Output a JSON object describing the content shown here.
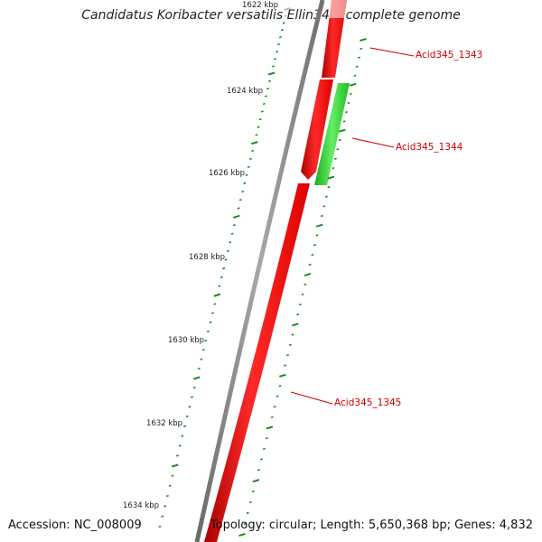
{
  "title": "Candidatus Koribacter versatilis Ellin345, complete genome",
  "accession": "Accession: NC_008009",
  "summary": "Topology: circular; Length: 5,650,368 bp; Genes: 4,832",
  "colors": {
    "backbone": "#808080",
    "forward_gene": "#ff0000",
    "reverse_gene": "#33cc33",
    "ticks": "#1f8a1f",
    "gene_label": "#cc0000"
  },
  "ticks": [
    {
      "label": "1622 kbp"
    },
    {
      "label": "1624 kbp"
    },
    {
      "label": "1626 kbp"
    },
    {
      "label": "1628 kbp"
    },
    {
      "label": "1630 kbp"
    },
    {
      "label": "1632 kbp"
    },
    {
      "label": "1634 kbp"
    }
  ],
  "genes": [
    {
      "name": "Acid345_1343",
      "strand": "+"
    },
    {
      "name": "Acid345_1344",
      "strand": "-"
    },
    {
      "name": "Acid345_1345",
      "strand": "+"
    }
  ]
}
